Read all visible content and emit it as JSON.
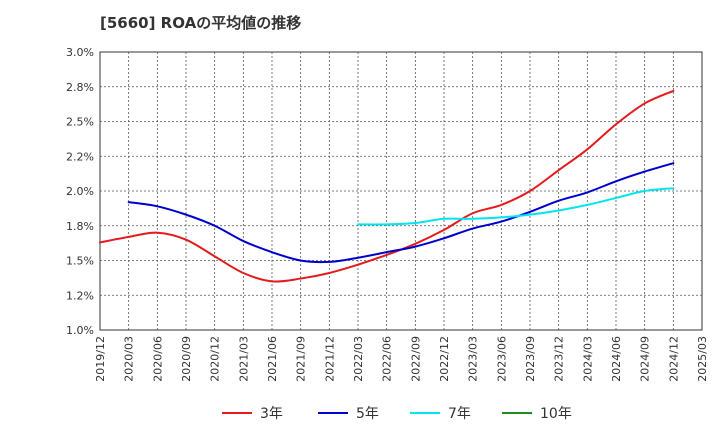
{
  "chart_data": {
    "type": "line",
    "title": "[5660]  ROAの平均値の推移",
    "xlabel": "",
    "ylabel": "",
    "ylim": [
      1.0,
      3.0
    ],
    "y_ticks": [
      "1.0%",
      "1.2%",
      "1.5%",
      "1.8%",
      "2.0%",
      "2.2%",
      "2.5%",
      "2.8%",
      "3.0%"
    ],
    "x_ticks": [
      "2019/12",
      "2020/03",
      "2020/06",
      "2020/09",
      "2020/12",
      "2021/03",
      "2021/06",
      "2021/09",
      "2021/12",
      "2022/03",
      "2022/06",
      "2022/09",
      "2022/12",
      "2023/03",
      "2023/06",
      "2023/09",
      "2023/12",
      "2024/03",
      "2024/06",
      "2024/09",
      "2024/12",
      "2025/03"
    ],
    "grid": true,
    "legend_position": "bottom",
    "series": [
      {
        "name": "3年",
        "color": "#e41a1c",
        "values": [
          {
            "x": "2019/12",
            "y": 1.63
          },
          {
            "x": "2020/03",
            "y": 1.67
          },
          {
            "x": "2020/06",
            "y": 1.7
          },
          {
            "x": "2020/09",
            "y": 1.65
          },
          {
            "x": "2020/12",
            "y": 1.53
          },
          {
            "x": "2021/03",
            "y": 1.41
          },
          {
            "x": "2021/06",
            "y": 1.35
          },
          {
            "x": "2021/09",
            "y": 1.37
          },
          {
            "x": "2021/12",
            "y": 1.41
          },
          {
            "x": "2022/03",
            "y": 1.47
          },
          {
            "x": "2022/06",
            "y": 1.54
          },
          {
            "x": "2022/09",
            "y": 1.62
          },
          {
            "x": "2022/12",
            "y": 1.72
          },
          {
            "x": "2023/03",
            "y": 1.84
          },
          {
            "x": "2023/06",
            "y": 1.9
          },
          {
            "x": "2023/09",
            "y": 2.0
          },
          {
            "x": "2023/12",
            "y": 2.15
          },
          {
            "x": "2024/03",
            "y": 2.3
          },
          {
            "x": "2024/06",
            "y": 2.48
          },
          {
            "x": "2024/09",
            "y": 2.63
          },
          {
            "x": "2024/12",
            "y": 2.72
          }
        ]
      },
      {
        "name": "5年",
        "color": "#0000cc",
        "values": [
          {
            "x": "2020/03",
            "y": 1.92
          },
          {
            "x": "2020/06",
            "y": 1.89
          },
          {
            "x": "2020/09",
            "y": 1.83
          },
          {
            "x": "2020/12",
            "y": 1.75
          },
          {
            "x": "2021/03",
            "y": 1.64
          },
          {
            "x": "2021/06",
            "y": 1.56
          },
          {
            "x": "2021/09",
            "y": 1.5
          },
          {
            "x": "2021/12",
            "y": 1.49
          },
          {
            "x": "2022/03",
            "y": 1.52
          },
          {
            "x": "2022/06",
            "y": 1.56
          },
          {
            "x": "2022/09",
            "y": 1.6
          },
          {
            "x": "2022/12",
            "y": 1.66
          },
          {
            "x": "2023/03",
            "y": 1.73
          },
          {
            "x": "2023/06",
            "y": 1.78
          },
          {
            "x": "2023/09",
            "y": 1.85
          },
          {
            "x": "2023/12",
            "y": 1.93
          },
          {
            "x": "2024/03",
            "y": 1.99
          },
          {
            "x": "2024/06",
            "y": 2.07
          },
          {
            "x": "2024/09",
            "y": 2.14
          },
          {
            "x": "2024/12",
            "y": 2.2
          }
        ]
      },
      {
        "name": "7年",
        "color": "#00e5ee",
        "values": [
          {
            "x": "2022/03",
            "y": 1.76
          },
          {
            "x": "2022/06",
            "y": 1.76
          },
          {
            "x": "2022/09",
            "y": 1.77
          },
          {
            "x": "2022/12",
            "y": 1.8
          },
          {
            "x": "2023/03",
            "y": 1.8
          },
          {
            "x": "2023/06",
            "y": 1.81
          },
          {
            "x": "2023/09",
            "y": 1.83
          },
          {
            "x": "2023/12",
            "y": 1.86
          },
          {
            "x": "2024/03",
            "y": 1.9
          },
          {
            "x": "2024/06",
            "y": 1.95
          },
          {
            "x": "2024/09",
            "y": 2.0
          },
          {
            "x": "2024/12",
            "y": 2.02
          }
        ]
      },
      {
        "name": "10年",
        "color": "#228b22",
        "values": []
      }
    ]
  }
}
